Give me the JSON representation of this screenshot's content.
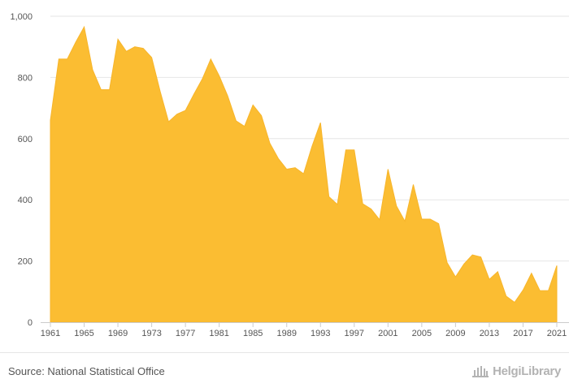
{
  "chart_data": {
    "type": "area",
    "color": "#fbbd32",
    "x": [
      1961,
      1962,
      1963,
      1964,
      1965,
      1966,
      1967,
      1968,
      1969,
      1970,
      1971,
      1972,
      1973,
      1974,
      1975,
      1976,
      1977,
      1978,
      1979,
      1980,
      1981,
      1982,
      1983,
      1984,
      1985,
      1986,
      1987,
      1988,
      1989,
      1990,
      1991,
      1992,
      1993,
      1994,
      1995,
      1996,
      1997,
      1998,
      1999,
      2000,
      2001,
      2002,
      2003,
      2004,
      2005,
      2006,
      2007,
      2008,
      2009,
      2010,
      2011,
      2012,
      2013,
      2014,
      2015,
      2016,
      2017,
      2018,
      2019,
      2020,
      2021
    ],
    "values": [
      660,
      860,
      860,
      915,
      965,
      825,
      760,
      760,
      925,
      885,
      900,
      895,
      865,
      755,
      655,
      680,
      692,
      745,
      795,
      860,
      805,
      740,
      658,
      640,
      710,
      675,
      585,
      535,
      500,
      505,
      485,
      575,
      652,
      410,
      385,
      563,
      563,
      387,
      370,
      335,
      500,
      380,
      330,
      450,
      337,
      337,
      322,
      195,
      148,
      190,
      220,
      213,
      140,
      165,
      85,
      65,
      105,
      160,
      103,
      103,
      185
    ],
    "xticks": [
      "1961",
      "1965",
      "1969",
      "1973",
      "1977",
      "1981",
      "1985",
      "1989",
      "1993",
      "1997",
      "2001",
      "2005",
      "2009",
      "2013",
      "2017",
      "2021"
    ],
    "yticks": [
      "0",
      "200",
      "400",
      "600",
      "800",
      "1,000"
    ],
    "ylim": [
      0,
      1000
    ],
    "xlim": [
      1961,
      2021
    ],
    "grid": true,
    "legend": "none"
  },
  "footer": {
    "source": "Source: National Statistical Office",
    "brand": "HelgiLibrary",
    "brand_icon": "library-building-icon"
  }
}
